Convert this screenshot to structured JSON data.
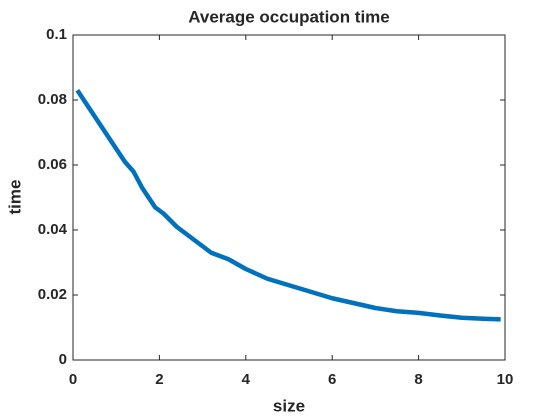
{
  "chart_data": {
    "type": "line",
    "title": "Average occupation time",
    "xlabel": "size",
    "ylabel": "time",
    "x": [
      0.1,
      0.4,
      0.7,
      1.0,
      1.2,
      1.4,
      1.6,
      1.9,
      2.1,
      2.4,
      2.7,
      3.0,
      3.2,
      3.6,
      4.0,
      4.5,
      5.0,
      5.5,
      6.0,
      6.5,
      7.0,
      7.5,
      8.0,
      8.5,
      9.0,
      9.5,
      9.9
    ],
    "series": [
      {
        "color": "#0072bd",
        "values": [
          0.083,
          0.077,
          0.071,
          0.065,
          0.061,
          0.058,
          0.053,
          0.047,
          0.045,
          0.041,
          0.038,
          0.035,
          0.033,
          0.031,
          0.028,
          0.025,
          0.023,
          0.021,
          0.019,
          0.0175,
          0.016,
          0.015,
          0.0145,
          0.0137,
          0.013,
          0.0127,
          0.0125
        ]
      }
    ],
    "xlim": [
      0,
      10
    ],
    "xticks": [
      0,
      2,
      4,
      6,
      8,
      10
    ],
    "ylim": [
      0,
      0.1
    ],
    "yticks": [
      0,
      0.02,
      0.04,
      0.06,
      0.08,
      0.1
    ],
    "grid": false
  }
}
